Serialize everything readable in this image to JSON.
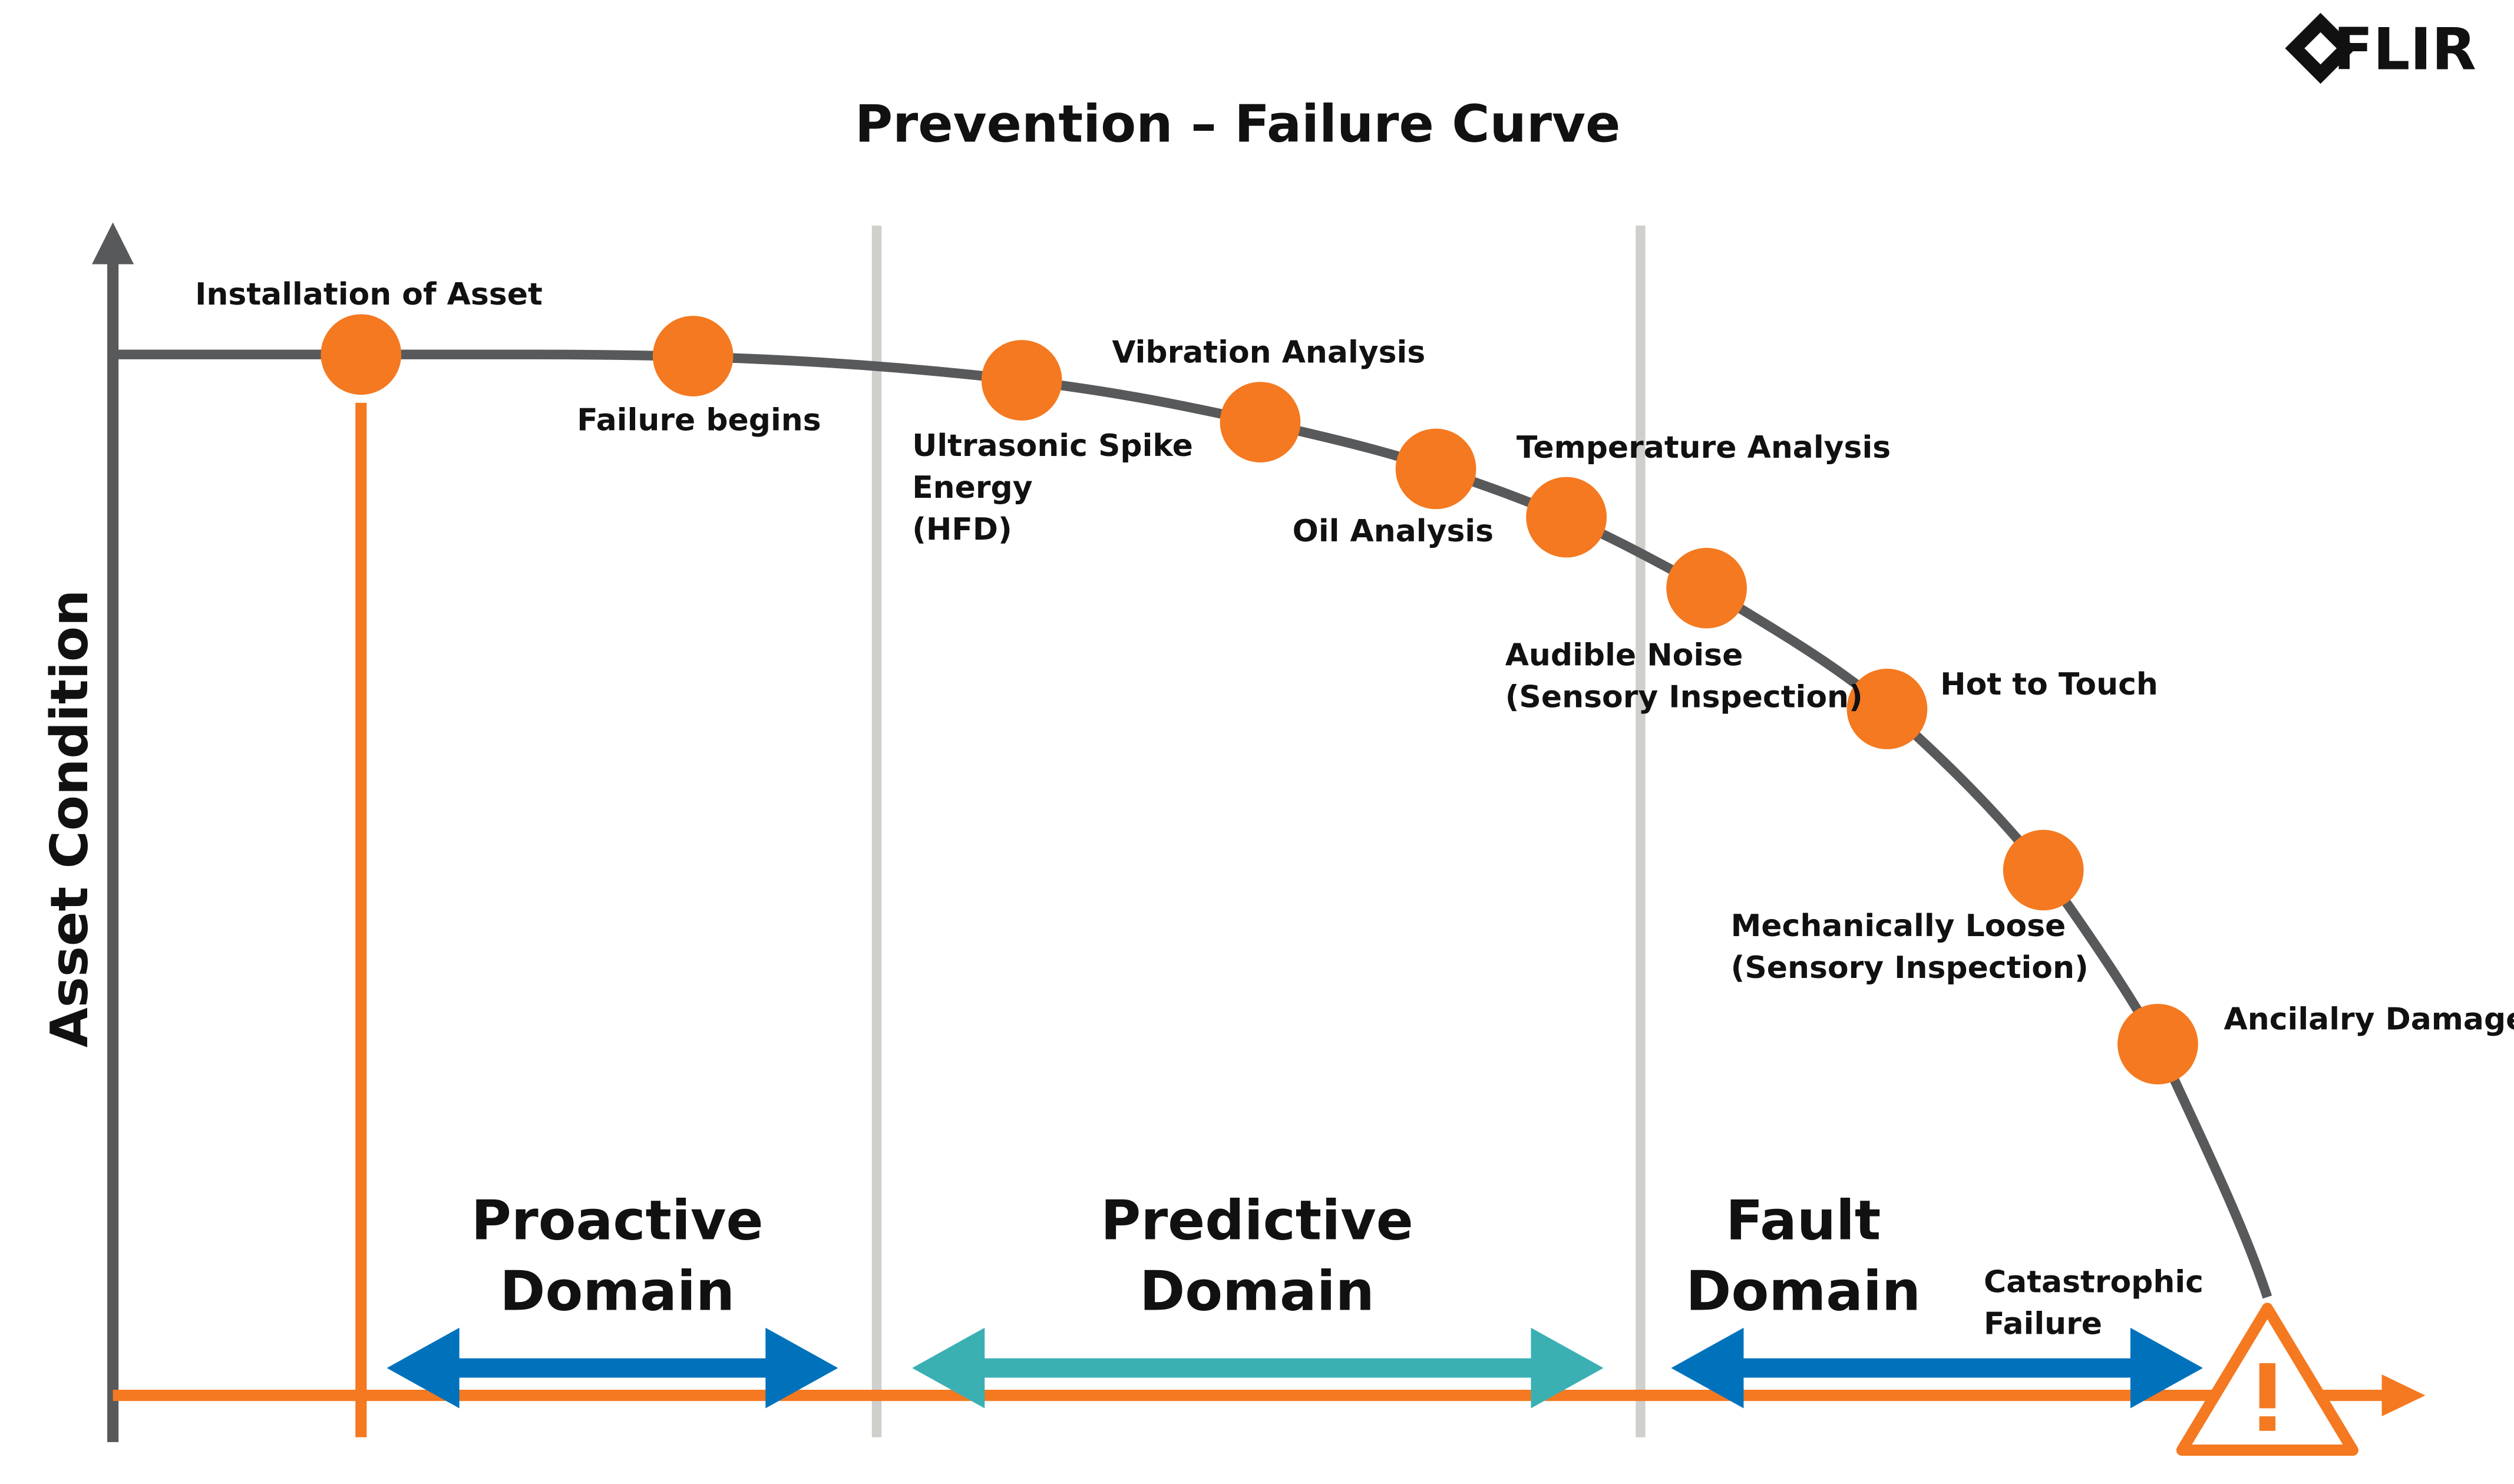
{
  "header": {
    "title": "Prevention – Failure Curve",
    "logo": "FLIR"
  },
  "y_axis_label": "Asset Condition",
  "points": [
    {
      "label": [
        "Installation of Asset"
      ]
    },
    {
      "label": [
        "Failure begins"
      ]
    },
    {
      "label": [
        "Ultrasonic Spike",
        "Energy",
        "(HFD)"
      ]
    },
    {
      "label": [
        "Vibration Analysis"
      ]
    },
    {
      "label": [
        "Oil Analysis"
      ]
    },
    {
      "label": [
        "Temperature Analysis"
      ]
    },
    {
      "label": [
        "Audible Noise",
        "(Sensory Inspection)"
      ]
    },
    {
      "label": [
        "Hot to Touch"
      ]
    },
    {
      "label": [
        "Mechanically Loose",
        "(Sensory Inspection)"
      ]
    },
    {
      "label": [
        "Ancilalry Damage"
      ]
    },
    {
      "label": [
        "Catastrophic",
        "Failure"
      ]
    }
  ],
  "domains": [
    {
      "label": [
        "Proactive",
        "Domain"
      ]
    },
    {
      "label": [
        "Predictive",
        "Domain"
      ]
    },
    {
      "label": [
        "Fault",
        "Domain"
      ]
    }
  ]
}
